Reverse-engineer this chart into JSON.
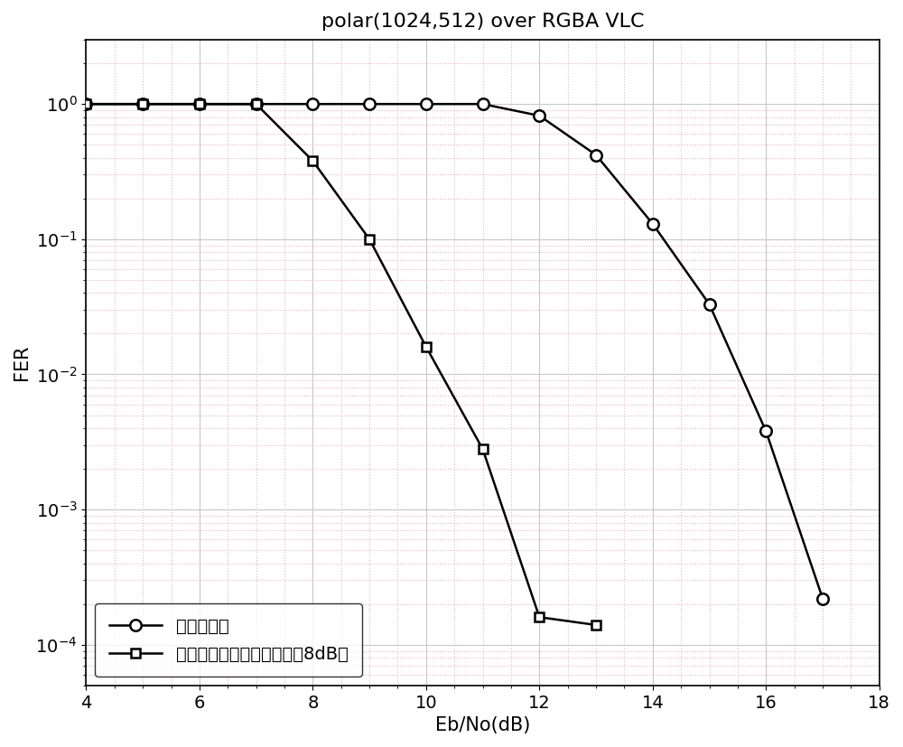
{
  "title": "polar(1024,512) over RGBA VLC",
  "xlabel": "Eb/No(dB)",
  "ylabel": "FER",
  "xlim": [
    4,
    18
  ],
  "ylim_bottom": 5e-05,
  "ylim_top": 3.0,
  "xticks": [
    4,
    6,
    8,
    10,
    12,
    14,
    16,
    18
  ],
  "series1": {
    "label": "标准极化码",
    "x": [
      4,
      5,
      6,
      7,
      8,
      9,
      10,
      11,
      12,
      13,
      14,
      15,
      16,
      17
    ],
    "y": [
      1.0,
      1.0,
      1.0,
      1.0,
      1.0,
      1.0,
      1.0,
      1.0,
      0.82,
      0.42,
      0.13,
      0.033,
      0.0038,
      0.00022
    ],
    "marker": "o",
    "color": "#000000",
    "linewidth": 1.8,
    "markersize": 9
  },
  "series2": {
    "label": "优化极化码（设计信噪比为8dB）",
    "x": [
      4,
      5,
      6,
      7,
      8,
      9,
      10,
      11,
      12,
      13
    ],
    "y": [
      1.0,
      1.0,
      1.0,
      1.0,
      0.38,
      0.1,
      0.016,
      0.0028,
      0.00016,
      0.00014
    ],
    "marker": "s",
    "color": "#000000",
    "linewidth": 1.8,
    "markersize": 7
  },
  "grid_major_color": "#c8c8c8",
  "grid_major_linestyle": "-",
  "grid_minor_color": "#e8b4c8",
  "grid_minor_linestyle": ":",
  "background_color": "#ffffff",
  "title_fontsize": 16,
  "label_fontsize": 15,
  "tick_fontsize": 14,
  "legend_fontsize": 14
}
